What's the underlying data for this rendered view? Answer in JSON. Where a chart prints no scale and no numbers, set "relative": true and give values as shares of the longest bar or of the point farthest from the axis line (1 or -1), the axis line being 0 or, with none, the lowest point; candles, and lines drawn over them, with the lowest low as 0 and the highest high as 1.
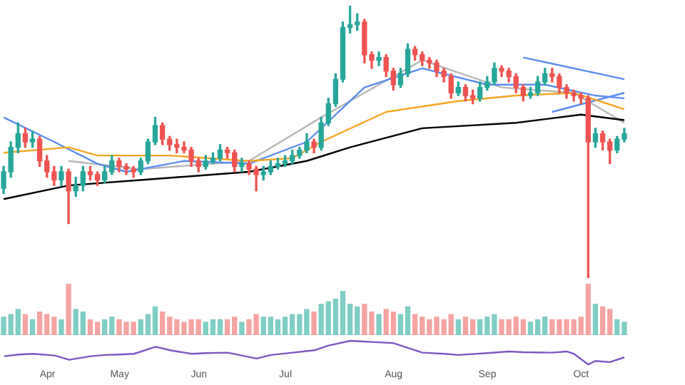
{
  "chart_data": [
    {
      "type": "candlestick",
      "relative": true,
      "legend": false,
      "tick_labels": false,
      "categories": [
        null,
        null,
        null,
        null,
        null,
        null,
        null,
        null,
        null,
        null,
        null,
        null,
        null,
        null,
        null,
        null,
        null,
        null,
        null,
        null,
        null,
        null,
        null,
        null,
        null,
        null,
        null,
        null,
        null,
        null,
        null,
        null,
        null,
        null,
        null,
        null,
        null,
        null,
        null,
        null,
        null,
        null,
        null,
        null,
        null,
        null,
        null,
        null,
        null,
        null,
        null,
        null,
        null,
        null,
        null,
        null,
        null,
        null,
        null,
        null,
        null,
        null,
        null,
        null,
        null,
        null,
        null,
        null,
        null,
        null,
        null,
        null,
        null,
        null,
        null,
        null,
        null,
        null,
        null,
        null,
        null,
        null,
        null,
        null,
        null,
        null,
        null
      ],
      "ohlc": [
        [
          0.33,
          0.41,
          0.31,
          0.39
        ],
        [
          0.39,
          0.5,
          0.37,
          0.48
        ],
        [
          0.48,
          0.57,
          0.46,
          0.53
        ],
        [
          0.53,
          0.55,
          0.48,
          0.5
        ],
        [
          0.5,
          0.54,
          0.48,
          0.51
        ],
        [
          0.51,
          0.52,
          0.41,
          0.43
        ],
        [
          0.43,
          0.45,
          0.37,
          0.39
        ],
        [
          0.39,
          0.41,
          0.34,
          0.36
        ],
        [
          0.36,
          0.41,
          0.34,
          0.39
        ],
        [
          0.39,
          0.4,
          0.2,
          0.32
        ],
        [
          0.32,
          0.37,
          0.3,
          0.34
        ],
        [
          0.34,
          0.41,
          0.32,
          0.39
        ],
        [
          0.39,
          0.41,
          0.36,
          0.38
        ],
        [
          0.38,
          0.39,
          0.34,
          0.36
        ],
        [
          0.36,
          0.41,
          0.35,
          0.39
        ],
        [
          0.39,
          0.45,
          0.38,
          0.43
        ],
        [
          0.43,
          0.44,
          0.39,
          0.41
        ],
        [
          0.41,
          0.42,
          0.38,
          0.4
        ],
        [
          0.4,
          0.41,
          0.37,
          0.39
        ],
        [
          0.39,
          0.44,
          0.38,
          0.43
        ],
        [
          0.43,
          0.51,
          0.42,
          0.5
        ],
        [
          0.5,
          0.59,
          0.49,
          0.56
        ],
        [
          0.56,
          0.57,
          0.49,
          0.51
        ],
        [
          0.51,
          0.52,
          0.47,
          0.49
        ],
        [
          0.49,
          0.51,
          0.46,
          0.48
        ],
        [
          0.48,
          0.5,
          0.46,
          0.47
        ],
        [
          0.47,
          0.48,
          0.41,
          0.43
        ],
        [
          0.43,
          0.44,
          0.39,
          0.41
        ],
        [
          0.41,
          0.45,
          0.4,
          0.43
        ],
        [
          0.43,
          0.46,
          0.42,
          0.44
        ],
        [
          0.44,
          0.49,
          0.43,
          0.47
        ],
        [
          0.47,
          0.48,
          0.44,
          0.46
        ],
        [
          0.46,
          0.47,
          0.39,
          0.41
        ],
        [
          0.41,
          0.44,
          0.39,
          0.42
        ],
        [
          0.42,
          0.43,
          0.38,
          0.4
        ],
        [
          0.4,
          0.41,
          0.32,
          0.38
        ],
        [
          0.38,
          0.41,
          0.36,
          0.39
        ],
        [
          0.39,
          0.43,
          0.38,
          0.41
        ],
        [
          0.41,
          0.44,
          0.4,
          0.42
        ],
        [
          0.42,
          0.45,
          0.41,
          0.43
        ],
        [
          0.43,
          0.47,
          0.42,
          0.45
        ],
        [
          0.45,
          0.48,
          0.44,
          0.47
        ],
        [
          0.47,
          0.53,
          0.46,
          0.5
        ],
        [
          0.5,
          0.51,
          0.46,
          0.48
        ],
        [
          0.48,
          0.59,
          0.47,
          0.57
        ],
        [
          0.57,
          0.66,
          0.56,
          0.64
        ],
        [
          0.64,
          0.75,
          0.63,
          0.73
        ],
        [
          0.73,
          0.94,
          0.72,
          0.92
        ],
        [
          0.92,
          1,
          0.9,
          0.93
        ],
        [
          0.93,
          0.97,
          0.91,
          0.94
        ],
        [
          0.94,
          0.95,
          0.79,
          0.82
        ],
        [
          0.82,
          0.83,
          0.77,
          0.8
        ],
        [
          0.8,
          0.83,
          0.78,
          0.81
        ],
        [
          0.81,
          0.82,
          0.74,
          0.76
        ],
        [
          0.76,
          0.77,
          0.69,
          0.71
        ],
        [
          0.71,
          0.77,
          0.7,
          0.75
        ],
        [
          0.75,
          0.86,
          0.74,
          0.84
        ],
        [
          0.84,
          0.85,
          0.8,
          0.82
        ],
        [
          0.82,
          0.83,
          0.78,
          0.8
        ],
        [
          0.8,
          0.81,
          0.77,
          0.79
        ],
        [
          0.79,
          0.8,
          0.74,
          0.76
        ],
        [
          0.76,
          0.77,
          0.72,
          0.74
        ],
        [
          0.74,
          0.75,
          0.66,
          0.68
        ],
        [
          0.68,
          0.72,
          0.67,
          0.7
        ],
        [
          0.7,
          0.71,
          0.65,
          0.67
        ],
        [
          0.67,
          0.69,
          0.64,
          0.66
        ],
        [
          0.66,
          0.72,
          0.65,
          0.7
        ],
        [
          0.7,
          0.74,
          0.69,
          0.72
        ],
        [
          0.72,
          0.79,
          0.71,
          0.77
        ],
        [
          0.77,
          0.78,
          0.74,
          0.76
        ],
        [
          0.76,
          0.77,
          0.72,
          0.74
        ],
        [
          0.74,
          0.75,
          0.68,
          0.7
        ],
        [
          0.7,
          0.71,
          0.65,
          0.67
        ],
        [
          0.67,
          0.7,
          0.66,
          0.68
        ],
        [
          0.68,
          0.74,
          0.67,
          0.72
        ],
        [
          0.72,
          0.77,
          0.71,
          0.75
        ],
        [
          0.75,
          0.77,
          0.72,
          0.74
        ],
        [
          0.74,
          0.75,
          0.68,
          0.7
        ],
        [
          0.7,
          0.71,
          0.66,
          0.68
        ],
        [
          0.68,
          0.69,
          0.65,
          0.67
        ],
        [
          0.67,
          0.68,
          0.64,
          0.66
        ],
        [
          0.66,
          0.67,
          0,
          0.5
        ],
        [
          0.5,
          0.55,
          0.48,
          0.53
        ],
        [
          0.53,
          0.54,
          0.47,
          0.5
        ],
        [
          0.5,
          0.51,
          0.42,
          0.47
        ],
        [
          0.47,
          0.52,
          0.46,
          0.51
        ],
        [
          0.51,
          0.55,
          0.5,
          0.53
        ]
      ],
      "colors": [
        "#26a69a",
        "#26a69a",
        "#26a69a",
        "#ef5350",
        "#26a69a",
        "#ef5350",
        "#ef5350",
        "#ef5350",
        "#26a69a",
        "#ef5350",
        "#26a69a",
        "#26a69a",
        "#ef5350",
        "#ef5350",
        "#26a69a",
        "#26a69a",
        "#ef5350",
        "#ef5350",
        "#ef5350",
        "#26a69a",
        "#26a69a",
        "#26a69a",
        "#ef5350",
        "#ef5350",
        "#ef5350",
        "#ef5350",
        "#ef5350",
        "#ef5350",
        "#26a69a",
        "#26a69a",
        "#26a69a",
        "#ef5350",
        "#ef5350",
        "#26a69a",
        "#ef5350",
        "#ef5350",
        "#26a69a",
        "#26a69a",
        "#26a69a",
        "#26a69a",
        "#26a69a",
        "#26a69a",
        "#26a69a",
        "#ef5350",
        "#26a69a",
        "#26a69a",
        "#26a69a",
        "#26a69a",
        "#26a69a",
        "#26a69a",
        "#ef5350",
        "#ef5350",
        "#26a69a",
        "#ef5350",
        "#ef5350",
        "#26a69a",
        "#26a69a",
        "#ef5350",
        "#ef5350",
        "#ef5350",
        "#ef5350",
        "#ef5350",
        "#ef5350",
        "#26a69a",
        "#ef5350",
        "#ef5350",
        "#26a69a",
        "#26a69a",
        "#26a69a",
        "#ef5350",
        "#ef5350",
        "#ef5350",
        "#ef5350",
        "#26a69a",
        "#26a69a",
        "#26a69a",
        "#ef5350",
        "#ef5350",
        "#ef5350",
        "#ef5350",
        "#ef5350",
        "#ef5350",
        "#26a69a",
        "#ef5350",
        "#ef5350",
        "#26a69a",
        "#26a69a"
      ],
      "series": [
        {
          "type": "line",
          "color": "#000000",
          "values": [
            0.29,
            null,
            null,
            null,
            null,
            null,
            null,
            null,
            null,
            0.34,
            null,
            null,
            null,
            null,
            null,
            null,
            null,
            null,
            null,
            0.36,
            null,
            null,
            null,
            null,
            null,
            null,
            null,
            null,
            null,
            null,
            null,
            null,
            null,
            null,
            0.39,
            null,
            null,
            null,
            null,
            null,
            null,
            null,
            0.43,
            null,
            null,
            null,
            null,
            null,
            0.48,
            null,
            null,
            null,
            null,
            null,
            null,
            null,
            null,
            null,
            0.55,
            null,
            null,
            null,
            null,
            null,
            null,
            null,
            null,
            null,
            null,
            null,
            null,
            0.57,
            null,
            null,
            null,
            null,
            null,
            null,
            null,
            null,
            0.6,
            null,
            null,
            null,
            null,
            null,
            0.58
          ]
        },
        {
          "type": "line",
          "color": "#f5a623",
          "values": [
            0.46,
            null,
            null,
            null,
            null,
            null,
            null,
            null,
            null,
            0.48,
            null,
            null,
            null,
            0.45,
            null,
            null,
            null,
            null,
            null,
            null,
            null,
            null,
            null,
            0.45,
            null,
            null,
            null,
            null,
            null,
            null,
            null,
            null,
            null,
            null,
            0.43,
            null,
            null,
            null,
            null,
            null,
            0.44,
            null,
            null,
            null,
            0.5,
            null,
            null,
            null,
            null,
            null,
            null,
            null,
            null,
            0.61,
            null,
            null,
            null,
            null,
            null,
            null,
            null,
            null,
            null,
            0.65,
            null,
            null,
            null,
            null,
            null,
            null,
            null,
            0.67,
            null,
            null,
            null,
            null,
            null,
            null,
            null,
            0.68,
            null,
            null,
            null,
            null,
            null,
            null,
            0.62
          ]
        },
        {
          "type": "line",
          "color": "#5b8def",
          "values": [
            0.59,
            null,
            null,
            null,
            null,
            null,
            null,
            0.5,
            null,
            null,
            null,
            null,
            null,
            0.42,
            null,
            null,
            null,
            0.39,
            null,
            null,
            null,
            null,
            null,
            null,
            null,
            0.43,
            null,
            null,
            null,
            null,
            null,
            null,
            null,
            null,
            0.42,
            null,
            null,
            null,
            null,
            null,
            null,
            null,
            0.5,
            null,
            null,
            null,
            null,
            null,
            null,
            null,
            0.7,
            null,
            null,
            null,
            null,
            null,
            null,
            null,
            0.77,
            null,
            null,
            null,
            null,
            null,
            null,
            null,
            null,
            0.71,
            null,
            null,
            null,
            null,
            null,
            null,
            null,
            0.71,
            null,
            null,
            null,
            null,
            null,
            null,
            0.67,
            null,
            null,
            null,
            0.66
          ]
        },
        {
          "type": "line",
          "color": "#b8b8b8",
          "values": [
            null,
            null,
            null,
            null,
            null,
            null,
            null,
            null,
            null,
            0.43,
            null,
            null,
            null,
            null,
            null,
            null,
            null,
            null,
            null,
            0.4,
            null,
            null,
            null,
            null,
            null,
            null,
            null,
            null,
            null,
            null,
            null,
            null,
            null,
            null,
            0.43,
            null,
            null,
            null,
            null,
            null,
            null,
            null,
            null,
            null,
            0.59,
            null,
            null,
            null,
            null,
            null,
            null,
            null,
            null,
            null,
            null,
            null,
            null,
            null,
            0.8,
            null,
            null,
            null,
            null,
            null,
            null,
            null,
            null,
            null,
            null,
            0.7,
            null,
            null,
            null,
            null,
            null,
            null,
            null,
            null,
            null,
            0.68,
            null,
            null,
            null,
            null,
            null,
            null,
            0.57
          ]
        },
        {
          "type": "line",
          "color": "#5b8def",
          "values": [
            null,
            null,
            null,
            null,
            null,
            null,
            null,
            null,
            null,
            null,
            null,
            null,
            null,
            null,
            null,
            null,
            null,
            null,
            null,
            null,
            null,
            null,
            null,
            null,
            null,
            null,
            null,
            null,
            null,
            null,
            null,
            null,
            null,
            null,
            null,
            null,
            null,
            null,
            null,
            null,
            null,
            null,
            null,
            null,
            null,
            null,
            null,
            null,
            null,
            null,
            null,
            null,
            null,
            null,
            null,
            null,
            null,
            null,
            null,
            null,
            null,
            null,
            null,
            null,
            null,
            null,
            null,
            null,
            null,
            null,
            null,
            null,
            0.81,
            null,
            null,
            null,
            null,
            null,
            null,
            null,
            null,
            null,
            null,
            null,
            null,
            null,
            0.73
          ]
        },
        {
          "type": "line",
          "color": "#5b8def",
          "values": [
            null,
            null,
            null,
            null,
            null,
            null,
            null,
            null,
            null,
            null,
            null,
            null,
            null,
            null,
            null,
            null,
            null,
            null,
            null,
            null,
            null,
            null,
            null,
            null,
            null,
            null,
            null,
            null,
            null,
            null,
            null,
            null,
            null,
            null,
            null,
            null,
            null,
            null,
            null,
            null,
            null,
            null,
            null,
            null,
            null,
            null,
            null,
            null,
            null,
            null,
            null,
            null,
            null,
            null,
            null,
            null,
            null,
            null,
            null,
            null,
            null,
            null,
            null,
            null,
            null,
            null,
            null,
            null,
            null,
            null,
            null,
            null,
            null,
            null,
            null,
            null,
            0.61,
            null,
            null,
            null,
            null,
            null,
            null,
            null,
            null,
            null,
            0.68
          ]
        }
      ]
    },
    {
      "type": "bar",
      "relative": true,
      "tick_labels": false,
      "categories": [
        null,
        null,
        null,
        null,
        null,
        null,
        null,
        null,
        null,
        null,
        null,
        null,
        null,
        null,
        null,
        null,
        null,
        null,
        null,
        null,
        null,
        null,
        null,
        null,
        null,
        null,
        null,
        null,
        null,
        null,
        null,
        null,
        null,
        null,
        null,
        null,
        null,
        null,
        null,
        null,
        null,
        null,
        null,
        null,
        null,
        null,
        null,
        null,
        null,
        null,
        null,
        null,
        null,
        null,
        null,
        null,
        null,
        null,
        null,
        null,
        null,
        null,
        null,
        null,
        null,
        null,
        null,
        null,
        null,
        null,
        null,
        null,
        null,
        null,
        null,
        null,
        null,
        null,
        null,
        null,
        null,
        null,
        null,
        null,
        null,
        null,
        null
      ],
      "values": [
        0.35,
        0.4,
        0.5,
        0.4,
        0.3,
        0.45,
        0.4,
        0.35,
        0.3,
        1,
        0.5,
        0.45,
        0.3,
        0.25,
        0.3,
        0.35,
        0.3,
        0.25,
        0.25,
        0.3,
        0.4,
        0.55,
        0.45,
        0.35,
        0.3,
        0.25,
        0.3,
        0.3,
        0.25,
        0.3,
        0.3,
        0.3,
        0.35,
        0.25,
        0.3,
        0.4,
        0.35,
        0.35,
        0.3,
        0.35,
        0.4,
        0.4,
        0.5,
        0.45,
        0.6,
        0.65,
        0.7,
        0.85,
        0.6,
        0.55,
        0.6,
        0.45,
        0.4,
        0.5,
        0.45,
        0.4,
        0.55,
        0.4,
        0.35,
        0.3,
        0.35,
        0.3,
        0.4,
        0.3,
        0.35,
        0.3,
        0.3,
        0.35,
        0.4,
        0.3,
        0.3,
        0.35,
        0.3,
        0.25,
        0.3,
        0.35,
        0.3,
        0.3,
        0.3,
        0.3,
        0.35,
        1,
        0.6,
        0.55,
        0.5,
        0.3,
        0.25
      ],
      "colors": [
        "#7fcdc4",
        "#7fcdc4",
        "#7fcdc4",
        "#f5a3a1",
        "#7fcdc4",
        "#f5a3a1",
        "#f5a3a1",
        "#f5a3a1",
        "#7fcdc4",
        "#f5a3a1",
        "#7fcdc4",
        "#7fcdc4",
        "#f5a3a1",
        "#f5a3a1",
        "#7fcdc4",
        "#7fcdc4",
        "#f5a3a1",
        "#f5a3a1",
        "#f5a3a1",
        "#7fcdc4",
        "#7fcdc4",
        "#7fcdc4",
        "#f5a3a1",
        "#f5a3a1",
        "#f5a3a1",
        "#f5a3a1",
        "#f5a3a1",
        "#f5a3a1",
        "#7fcdc4",
        "#7fcdc4",
        "#7fcdc4",
        "#f5a3a1",
        "#f5a3a1",
        "#7fcdc4",
        "#f5a3a1",
        "#f5a3a1",
        "#7fcdc4",
        "#7fcdc4",
        "#7fcdc4",
        "#7fcdc4",
        "#7fcdc4",
        "#7fcdc4",
        "#7fcdc4",
        "#f5a3a1",
        "#7fcdc4",
        "#7fcdc4",
        "#7fcdc4",
        "#7fcdc4",
        "#7fcdc4",
        "#7fcdc4",
        "#f5a3a1",
        "#f5a3a1",
        "#7fcdc4",
        "#f5a3a1",
        "#f5a3a1",
        "#7fcdc4",
        "#7fcdc4",
        "#f5a3a1",
        "#f5a3a1",
        "#f5a3a1",
        "#f5a3a1",
        "#f5a3a1",
        "#f5a3a1",
        "#7fcdc4",
        "#f5a3a1",
        "#f5a3a1",
        "#7fcdc4",
        "#7fcdc4",
        "#7fcdc4",
        "#f5a3a1",
        "#f5a3a1",
        "#f5a3a1",
        "#f5a3a1",
        "#7fcdc4",
        "#7fcdc4",
        "#7fcdc4",
        "#f5a3a1",
        "#f5a3a1",
        "#f5a3a1",
        "#f5a3a1",
        "#f5a3a1",
        "#f5a3a1",
        "#7fcdc4",
        "#f5a3a1",
        "#f5a3a1",
        "#7fcdc4",
        "#7fcdc4"
      ]
    },
    {
      "type": "line",
      "relative": true,
      "color": "#7e57c2",
      "categories": [
        null,
        null,
        null,
        null,
        null,
        null,
        "Apr",
        null,
        null,
        null,
        null,
        null,
        null,
        null,
        null,
        null,
        "May",
        null,
        null,
        null,
        null,
        null,
        null,
        null,
        null,
        null,
        null,
        "Jun",
        null,
        null,
        null,
        null,
        null,
        null,
        null,
        null,
        null,
        null,
        null,
        "Jul",
        null,
        null,
        null,
        null,
        null,
        null,
        null,
        null,
        null,
        null,
        null,
        null,
        null,
        null,
        "Aug",
        null,
        null,
        null,
        null,
        null,
        null,
        null,
        null,
        null,
        null,
        null,
        null,
        "Sep",
        null,
        null,
        null,
        null,
        null,
        null,
        null,
        null,
        null,
        null,
        null,
        null,
        "Oct",
        null,
        null,
        null,
        null,
        null,
        null
      ],
      "values": [
        0.35,
        null,
        0.42,
        null,
        0.45,
        null,
        null,
        0.38,
        null,
        0.2,
        null,
        null,
        0.35,
        null,
        0.4,
        null,
        0.42,
        null,
        0.45,
        null,
        null,
        0.75,
        null,
        0.6,
        null,
        null,
        0.45,
        null,
        0.48,
        null,
        null,
        0.5,
        null,
        null,
        null,
        0.25,
        null,
        0.4,
        null,
        null,
        0.5,
        null,
        null,
        0.6,
        null,
        0.8,
        null,
        null,
        1,
        null,
        null,
        0.95,
        null,
        null,
        0.9,
        null,
        null,
        null,
        0.5,
        null,
        null,
        0.45,
        null,
        0.4,
        null,
        null,
        null,
        0.48,
        null,
        null,
        0.55,
        null,
        0.52,
        null,
        null,
        null,
        0.5,
        null,
        0.55,
        0.45,
        null,
        0,
        0.15,
        null,
        0.1,
        null,
        0.3
      ]
    }
  ]
}
